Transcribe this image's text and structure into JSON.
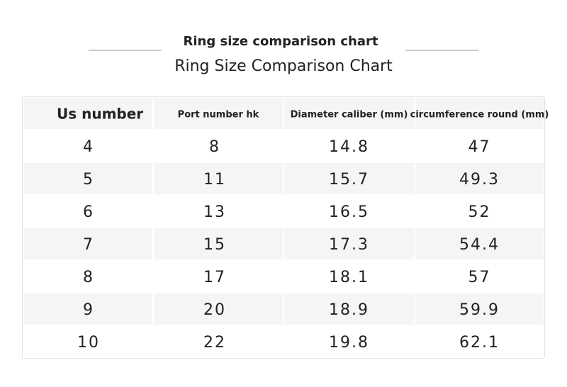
{
  "header": {
    "title": "Ring size comparison chart",
    "subtitle": "Ring Size Comparison Chart"
  },
  "table": {
    "columns": [
      "Us number",
      "Port number hk",
      "Diameter caliber (mm)",
      "circumference round (mm)"
    ],
    "rows": [
      [
        "4",
        "8",
        "14.8",
        "47"
      ],
      [
        "5",
        "11",
        "15.7",
        "49.3"
      ],
      [
        "6",
        "13",
        "16.5",
        "52"
      ],
      [
        "7",
        "15",
        "17.3",
        "54.4"
      ],
      [
        "8",
        "17",
        "18.1",
        "57"
      ],
      [
        "9",
        "20",
        "18.9",
        "59.9"
      ],
      [
        "10",
        "22",
        "19.8",
        "62.1"
      ]
    ]
  }
}
